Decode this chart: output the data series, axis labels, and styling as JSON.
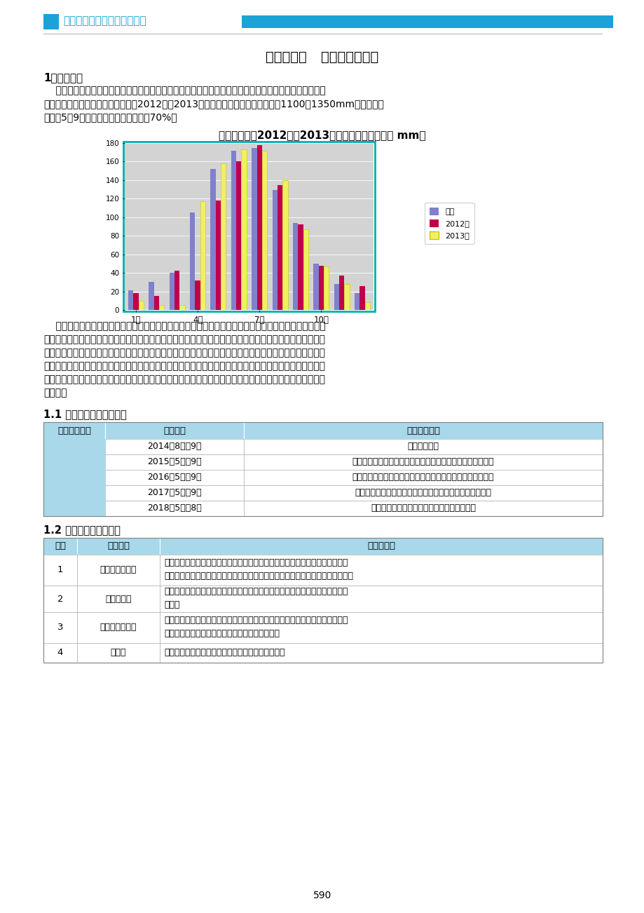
{
  "page_title": "第三十六节   季节性施工方案",
  "header_company": "中国建筑第二工程局有限公司",
  "section1_title": "1．雨季施工",
  "chart_title": "重庆市历年、2012年、2013年月平均降水量（单位 mm）",
  "months_xtick": [
    "1月",
    "4月",
    "7月",
    "10月"
  ],
  "hist_data": [
    21,
    30,
    40,
    105,
    152,
    172,
    175,
    129,
    94,
    50,
    28,
    18
  ],
  "y2012_data": [
    18,
    15,
    42,
    32,
    118,
    160,
    178,
    135,
    92,
    48,
    37,
    26
  ],
  "y2013_data": [
    10,
    5,
    5,
    117,
    158,
    173,
    172,
    140,
    87,
    47,
    28,
    8
  ],
  "yticks": [
    0,
    20,
    40,
    60,
    80,
    100,
    120,
    140,
    160,
    180
  ],
  "page_number": "590",
  "header_color": "#1ba3d9",
  "table_header_bg": "#a8d8ea",
  "chart_bg": "#d3d3d3",
  "chart_border": "#00b0b0"
}
